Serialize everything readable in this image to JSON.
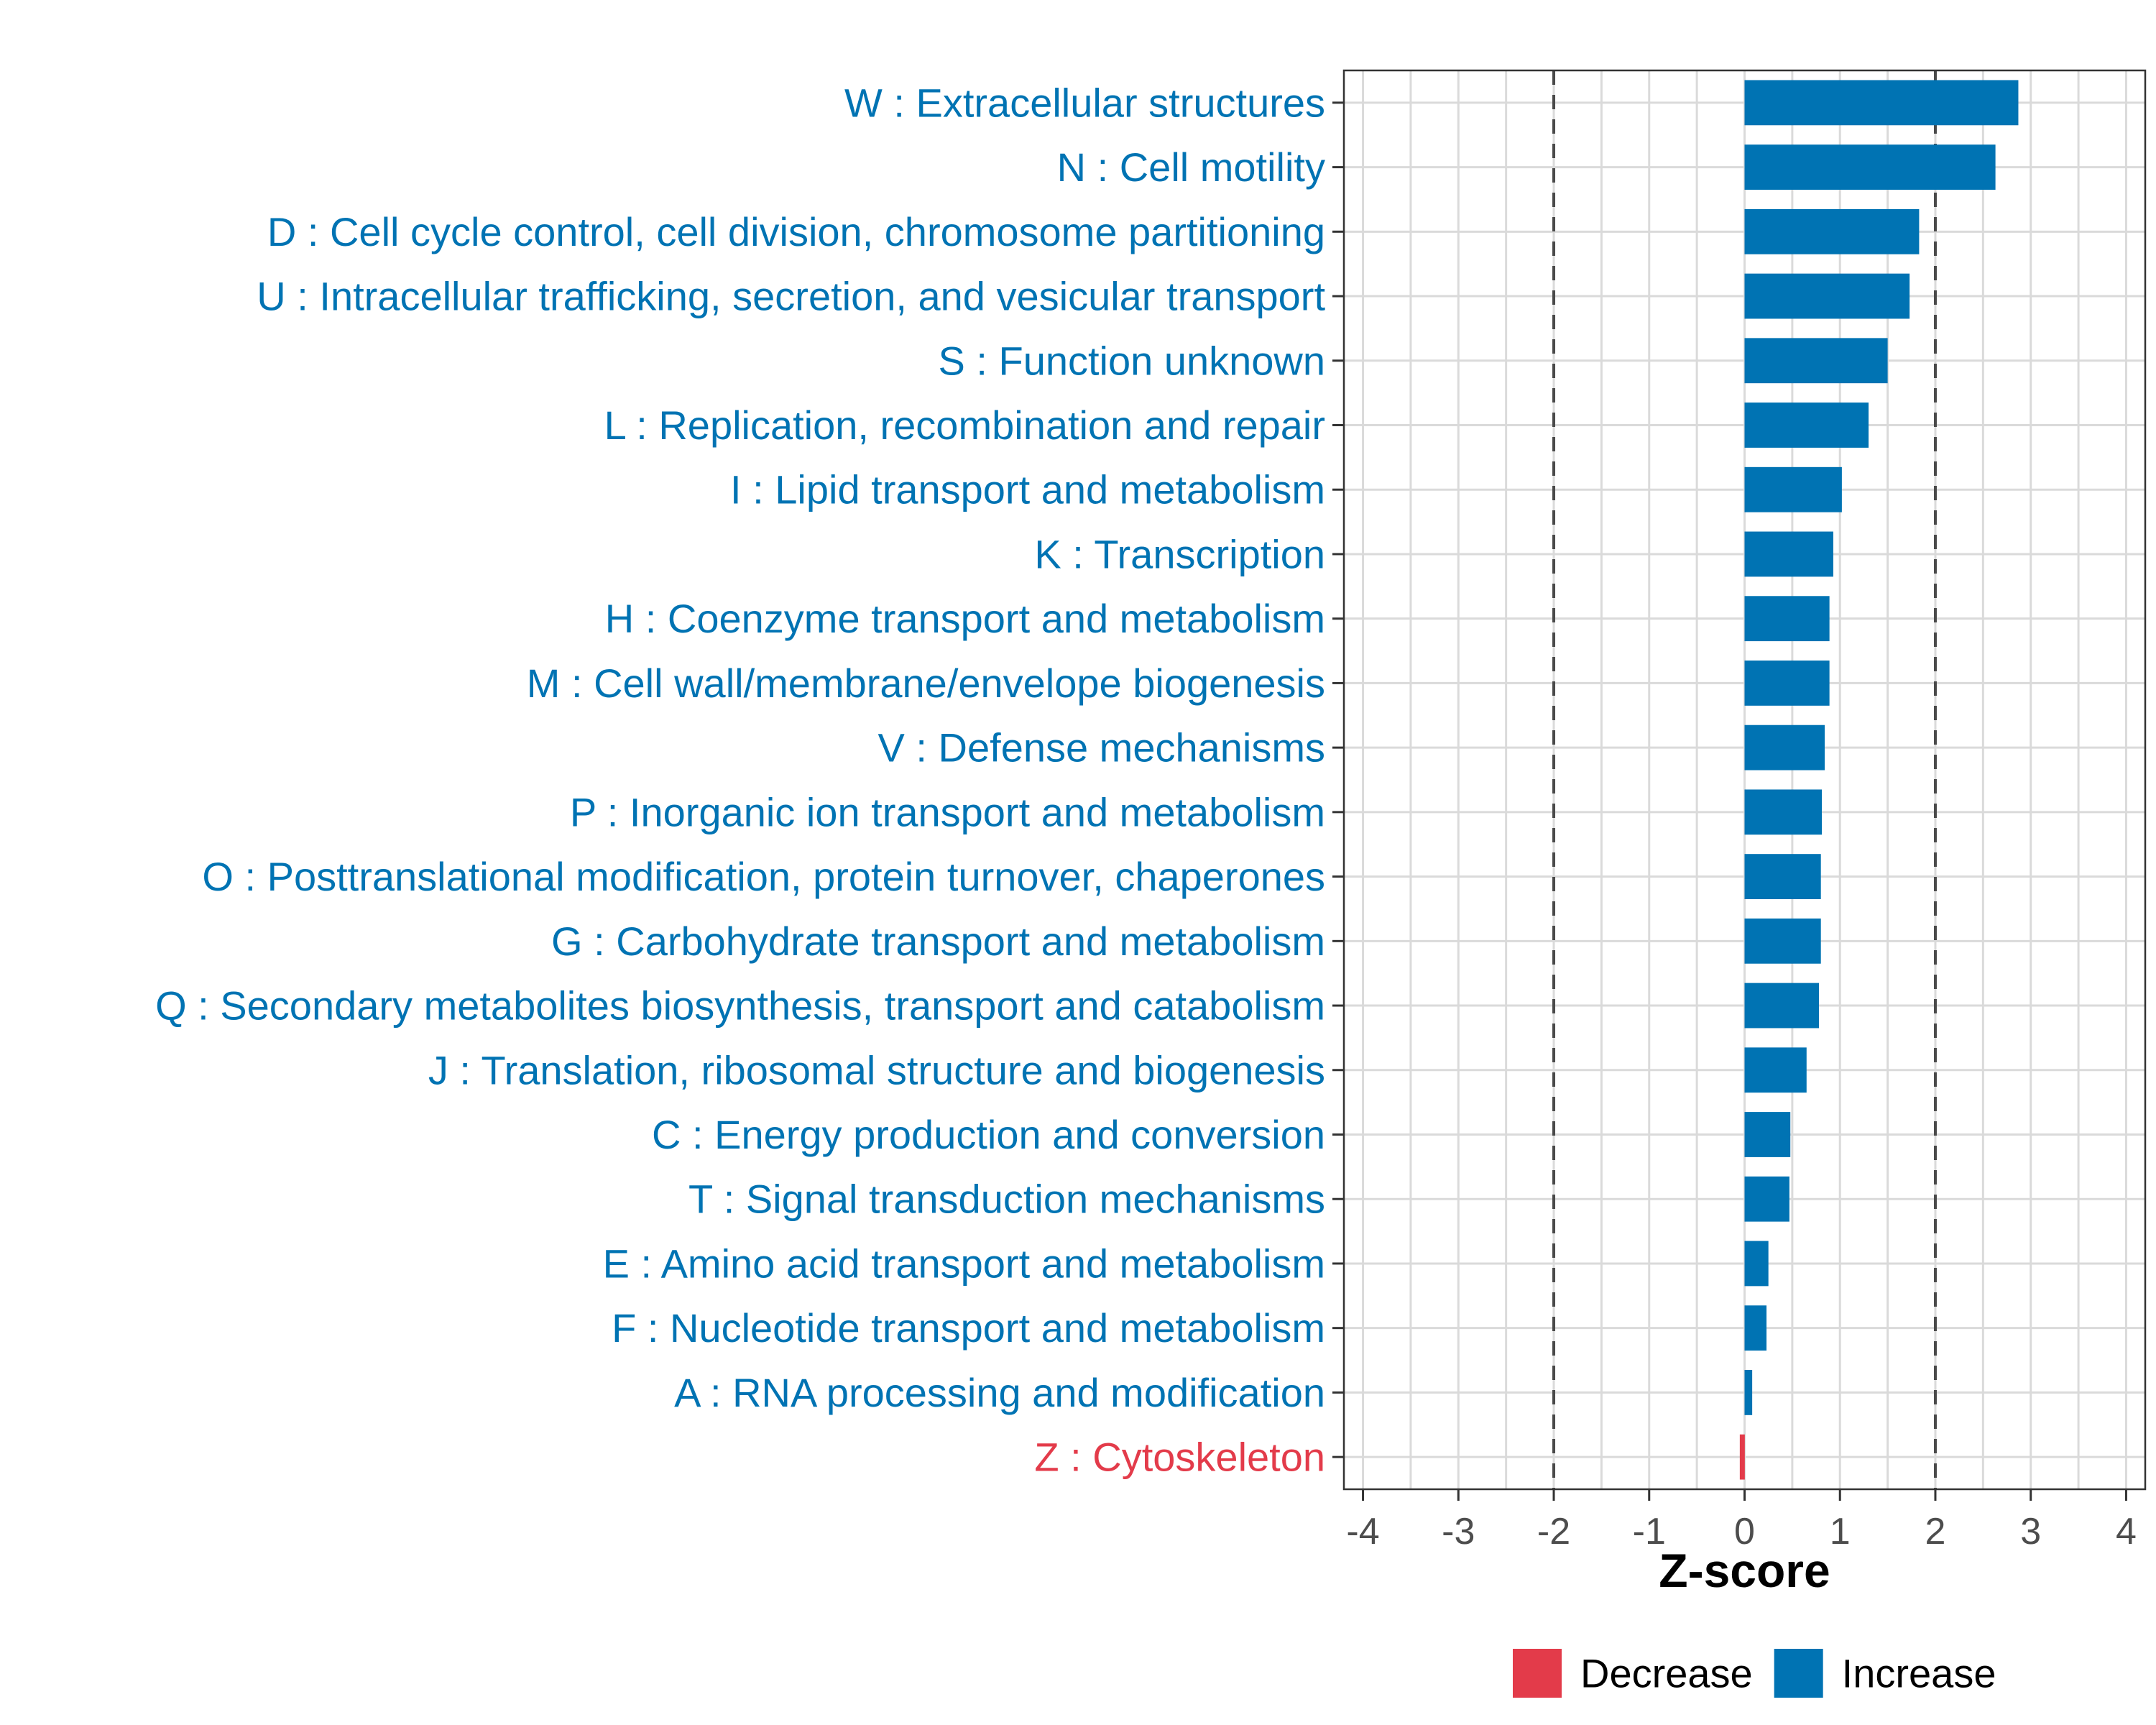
{
  "chart_data": {
    "type": "bar",
    "orientation": "horizontal",
    "title": "",
    "xlabel": "Z-score",
    "ylabel": "",
    "xlim": [
      -4.2,
      4.2
    ],
    "x_ticks": [
      -4,
      -3,
      -2,
      -1,
      0,
      1,
      2,
      3,
      4
    ],
    "x_tick_labels": [
      "-4",
      "-3",
      "-2",
      "-1",
      "0",
      "1",
      "2",
      "3",
      "4"
    ],
    "reference_lines": [
      -2,
      2
    ],
    "grid": true,
    "legend_position": "bottom",
    "colors": {
      "Increase": "#0073b3",
      "Decrease": "#e33b4a"
    },
    "legend": [
      {
        "name": "Decrease",
        "color": "#e33b4a"
      },
      {
        "name": "Increase",
        "color": "#0073b3"
      }
    ],
    "categories": [
      "W : Extracellular structures",
      "N : Cell motility",
      "D : Cell cycle control, cell division, chromosome partitioning",
      "U : Intracellular trafficking, secretion, and vesicular transport",
      "S : Function unknown",
      "L : Replication, recombination and repair",
      "I : Lipid transport and metabolism",
      "K : Transcription",
      "H : Coenzyme transport and metabolism",
      "M : Cell wall/membrane/envelope biogenesis",
      "V : Defense mechanisms",
      "P : Inorganic ion transport and metabolism",
      "O : Posttranslational modification, protein turnover, chaperones",
      "G : Carbohydrate transport and metabolism",
      "Q : Secondary metabolites biosynthesis, transport and catabolism",
      "J : Translation, ribosomal structure and biogenesis",
      "C : Energy production and conversion",
      "T : Signal transduction mechanisms",
      "E : Amino acid transport and metabolism",
      "F : Nucleotide transport and metabolism",
      "A : RNA processing and modification",
      "Z : Cytoskeleton"
    ],
    "values": [
      2.87,
      2.63,
      1.83,
      1.73,
      1.5,
      1.3,
      1.02,
      0.93,
      0.89,
      0.89,
      0.84,
      0.81,
      0.8,
      0.8,
      0.78,
      0.65,
      0.48,
      0.47,
      0.25,
      0.23,
      0.08,
      -0.05
    ],
    "direction": [
      "Increase",
      "Increase",
      "Increase",
      "Increase",
      "Increase",
      "Increase",
      "Increase",
      "Increase",
      "Increase",
      "Increase",
      "Increase",
      "Increase",
      "Increase",
      "Increase",
      "Increase",
      "Increase",
      "Increase",
      "Increase",
      "Increase",
      "Increase",
      "Increase",
      "Decrease"
    ]
  }
}
